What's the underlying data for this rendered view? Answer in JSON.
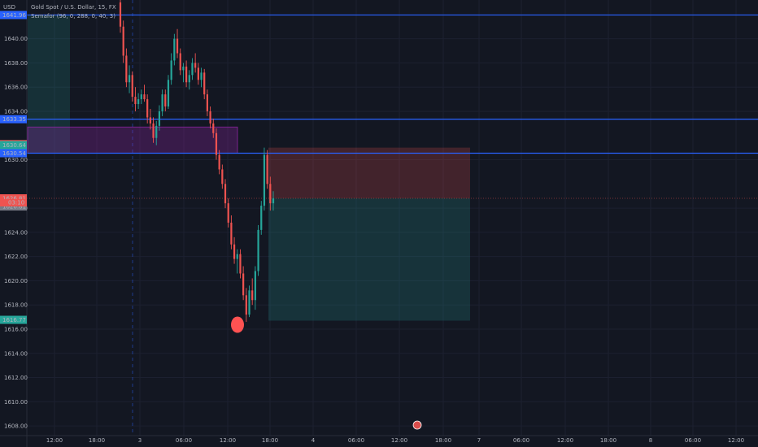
{
  "header": {
    "symbol_line": "Gold Spot / U.S. Dollar, 15, FX",
    "indicator_line": "Semafor (96, 0, 288, 0, 40, 3)",
    "currency": "USD"
  },
  "colors": {
    "background": "#131722",
    "grid": "#1c2030",
    "text": "#b2b5be",
    "up": "#26a69a",
    "down": "#ef5350",
    "hline": "#2962ff",
    "purple_zone": "#9c27b0",
    "semafor": "#ff5252"
  },
  "chart_data": {
    "type": "candlestick",
    "y_ticks": [
      "1640.00",
      "1638.00",
      "1636.00",
      "1634.00",
      "1630.00",
      "1626.00",
      "1624.00",
      "1622.00",
      "1620.00",
      "1618.00",
      "1616.00",
      "1614.00",
      "1612.00",
      "1610.00",
      "1608.00"
    ],
    "x_ticks": [
      "12:00",
      "18:00",
      "3",
      "06:00",
      "12:00",
      "18:00",
      "4",
      "06:00",
      "12:00",
      "18:00",
      "7",
      "06:00",
      "12:00",
      "18:00",
      "8",
      "06:00",
      "12:00"
    ],
    "ylim": [
      1607.2,
      1643.2
    ],
    "price_badges": [
      {
        "label": "1641.96",
        "value": 1641.96,
        "color": "#2962ff"
      },
      {
        "label": "1633.35",
        "value": 1633.35,
        "color": "#2962ff"
      },
      {
        "label": "1631.29",
        "value": 1631.29,
        "color": "#ef5350"
      },
      {
        "label": "1630.64",
        "value": 1630.64,
        "color": "#26a69a"
      },
      {
        "label": "1630.54",
        "value": 1630.54,
        "color": "#2962ff"
      },
      {
        "label": "1626.81",
        "value": 1626.81,
        "color": "#ef5350"
      },
      {
        "label": "1626.81",
        "value": 1626.81,
        "color": "#787b86"
      },
      {
        "label": "1616.77",
        "value": 1616.77,
        "color": "#26a69a"
      }
    ],
    "countdown": "03:10",
    "horizontal_lines": [
      1641.96,
      1633.35,
      1630.54
    ],
    "current_price": 1626.81,
    "semafor_low": 1616.5,
    "candles": [
      [
        1643.0,
        1643.2,
        1640.5,
        1641.0
      ],
      [
        1641.0,
        1641.5,
        1638.0,
        1638.6
      ],
      [
        1638.6,
        1639.2,
        1636.0,
        1636.4
      ],
      [
        1636.4,
        1637.8,
        1635.5,
        1637.0
      ],
      [
        1637.0,
        1637.3,
        1634.8,
        1635.2
      ],
      [
        1635.2,
        1636.0,
        1634.0,
        1634.6
      ],
      [
        1634.6,
        1635.5,
        1634.2,
        1635.0
      ],
      [
        1635.0,
        1635.8,
        1634.6,
        1635.4
      ],
      [
        1635.4,
        1636.2,
        1634.8,
        1635.0
      ],
      [
        1635.0,
        1635.4,
        1633.0,
        1633.5
      ],
      [
        1633.5,
        1634.2,
        1632.5,
        1633.0
      ],
      [
        1633.0,
        1633.5,
        1631.4,
        1631.8
      ],
      [
        1631.8,
        1633.2,
        1631.2,
        1632.8
      ],
      [
        1632.8,
        1634.5,
        1632.4,
        1634.0
      ],
      [
        1634.0,
        1635.8,
        1633.6,
        1635.4
      ],
      [
        1635.4,
        1635.8,
        1634.0,
        1634.4
      ],
      [
        1634.4,
        1637.0,
        1634.2,
        1636.6
      ],
      [
        1636.6,
        1638.8,
        1636.2,
        1638.2
      ],
      [
        1638.2,
        1640.4,
        1637.8,
        1640.0
      ],
      [
        1640.0,
        1640.8,
        1638.4,
        1638.8
      ],
      [
        1638.8,
        1639.2,
        1637.0,
        1637.4
      ],
      [
        1637.4,
        1638.0,
        1636.4,
        1637.7
      ],
      [
        1637.7,
        1638.2,
        1636.0,
        1636.4
      ],
      [
        1636.4,
        1637.4,
        1635.8,
        1637.0
      ],
      [
        1637.0,
        1638.4,
        1636.6,
        1638.0
      ],
      [
        1638.0,
        1638.8,
        1637.2,
        1637.6
      ],
      [
        1637.6,
        1638.0,
        1636.2,
        1636.6
      ],
      [
        1636.6,
        1637.6,
        1636.0,
        1637.2
      ],
      [
        1637.2,
        1637.5,
        1635.0,
        1635.4
      ],
      [
        1635.4,
        1635.8,
        1633.6,
        1634.0
      ],
      [
        1634.0,
        1634.4,
        1632.6,
        1633.0
      ],
      [
        1633.0,
        1633.4,
        1631.8,
        1632.2
      ],
      [
        1632.2,
        1632.6,
        1630.0,
        1630.4
      ],
      [
        1630.4,
        1630.8,
        1628.8,
        1629.2
      ],
      [
        1629.2,
        1629.6,
        1627.6,
        1628.0
      ],
      [
        1628.0,
        1628.4,
        1626.0,
        1626.4
      ],
      [
        1626.4,
        1626.8,
        1624.4,
        1624.8
      ],
      [
        1624.8,
        1625.4,
        1622.6,
        1623.0
      ],
      [
        1623.0,
        1623.6,
        1621.4,
        1621.8
      ],
      [
        1621.8,
        1622.6,
        1620.6,
        1622.2
      ],
      [
        1622.2,
        1622.6,
        1620.2,
        1620.6
      ],
      [
        1620.6,
        1621.2,
        1618.4,
        1618.8
      ],
      [
        1618.8,
        1619.4,
        1616.6,
        1617.2
      ],
      [
        1617.2,
        1619.6,
        1617.0,
        1619.2
      ],
      [
        1619.2,
        1620.2,
        1618.0,
        1618.4
      ],
      [
        1618.4,
        1621.2,
        1617.6,
        1620.8
      ],
      [
        1620.8,
        1624.6,
        1620.4,
        1624.2
      ],
      [
        1624.2,
        1626.6,
        1623.8,
        1626.2
      ],
      [
        1626.2,
        1631.0,
        1625.8,
        1630.4
      ],
      [
        1630.4,
        1630.8,
        1627.6,
        1628.0
      ],
      [
        1628.0,
        1628.6,
        1625.8,
        1626.4
      ],
      [
        1626.4,
        1627.4,
        1625.8,
        1626.8
      ]
    ]
  }
}
